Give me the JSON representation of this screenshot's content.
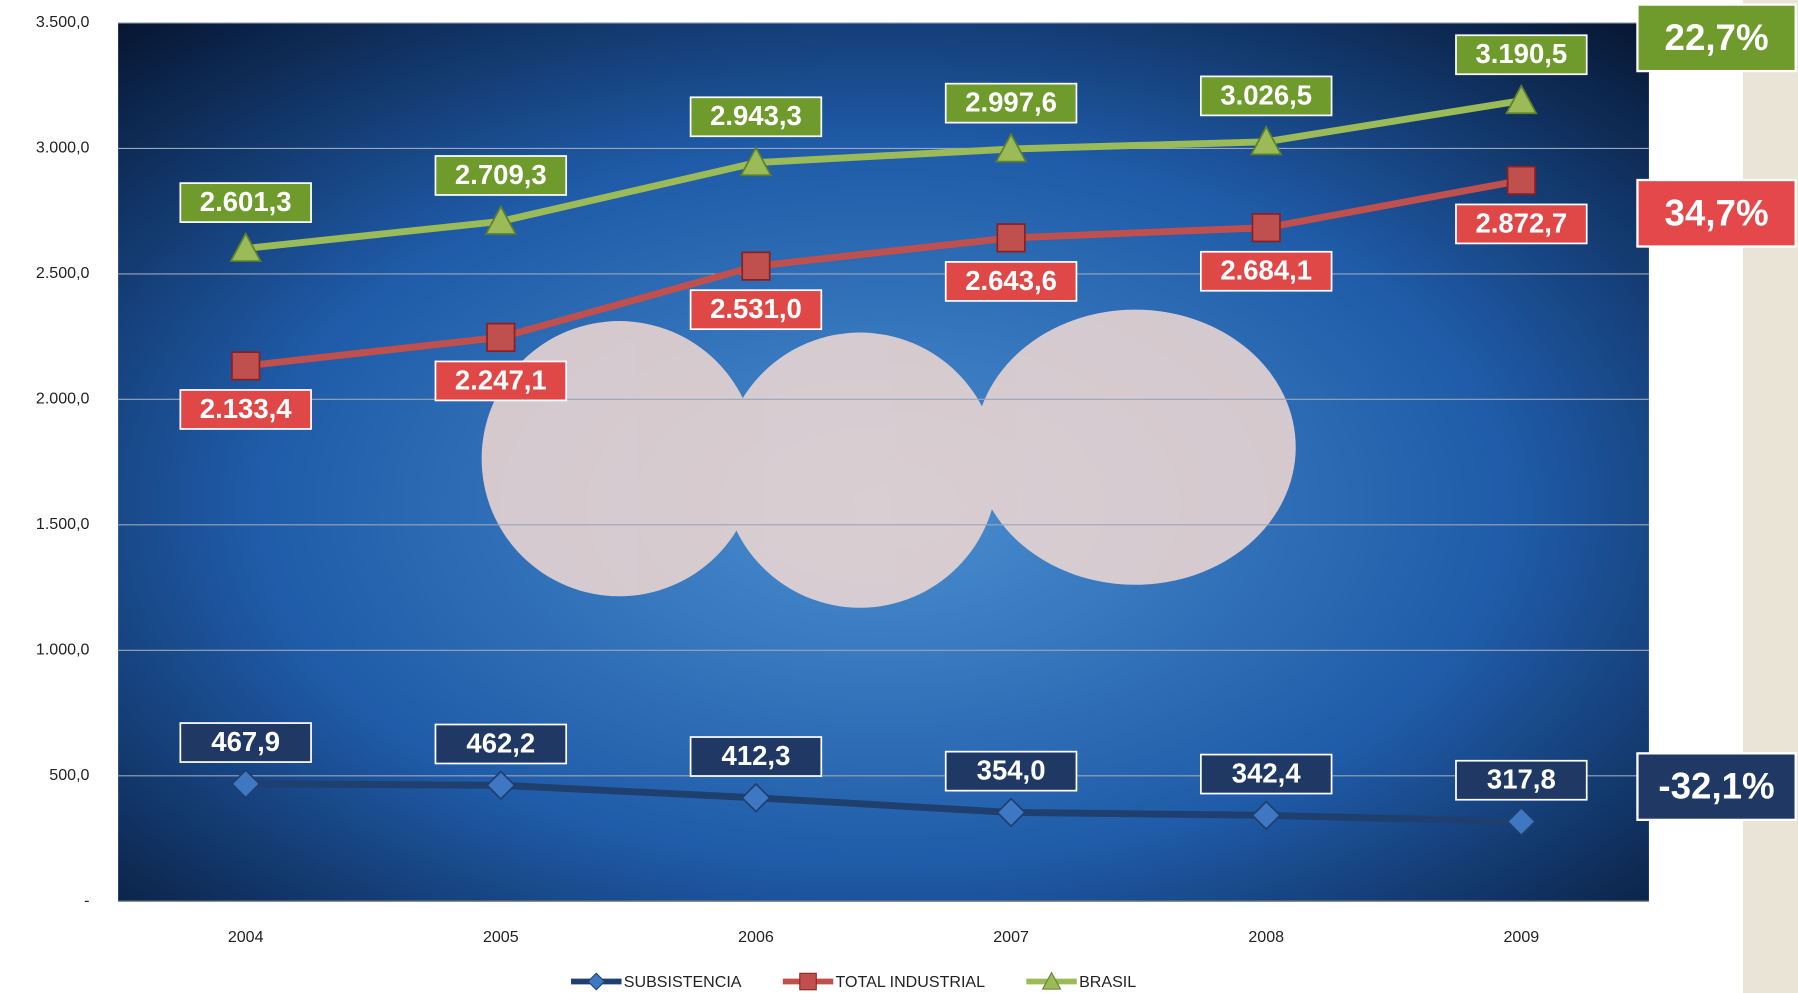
{
  "chart_data": {
    "type": "line",
    "categories": [
      "2004",
      "2005",
      "2006",
      "2007",
      "2008",
      "2009"
    ],
    "series": [
      {
        "name": "SUBSISTENCIA",
        "color": "#1f3f6e",
        "marker": "diamond",
        "values": [
          467.9,
          462.2,
          412.3,
          354.0,
          342.4,
          317.8
        ],
        "value_labels": [
          "467,9",
          "462,2",
          "412,3",
          "354,0",
          "342,4",
          "317,8"
        ]
      },
      {
        "name": "TOTAL INDUSTRIAL",
        "color": "#c0504d",
        "marker": "square",
        "values": [
          2133.4,
          2247.1,
          2531.0,
          2643.6,
          2684.1,
          2872.7
        ],
        "value_labels": [
          "2.133,4",
          "2.247,1",
          "2.531,0",
          "2.643,6",
          "2.684,1",
          "2.872,7"
        ]
      },
      {
        "name": "BRASIL",
        "color": "#9bbb59",
        "marker": "triangle",
        "values": [
          2601.3,
          2709.3,
          2943.3,
          2997.6,
          3026.5,
          3190.5
        ],
        "value_labels": [
          "2.601,3",
          "2.709,3",
          "2.943,3",
          "2.997,6",
          "3.026,5",
          "3.190,5"
        ]
      }
    ],
    "ylim": [
      0,
      3500
    ],
    "yticks": [
      {
        "value": 0,
        "label": "-"
      },
      {
        "value": 500,
        "label": "500,0"
      },
      {
        "value": 1000,
        "label": "1.000,0"
      },
      {
        "value": 1500,
        "label": "1.500,0"
      },
      {
        "value": 2000,
        "label": "2.000,0"
      },
      {
        "value": 2500,
        "label": "2.500,0"
      },
      {
        "value": 3000,
        "label": "3.000,0"
      },
      {
        "value": 3500,
        "label": "3.500,0"
      }
    ],
    "grid": true,
    "annotations": [
      {
        "text": "22,7%",
        "color": "#6f9a2c"
      },
      {
        "text": "34,7%",
        "color": "#e5484b"
      },
      {
        "text": "-32,1%",
        "color": "#1f3864"
      }
    ]
  }
}
